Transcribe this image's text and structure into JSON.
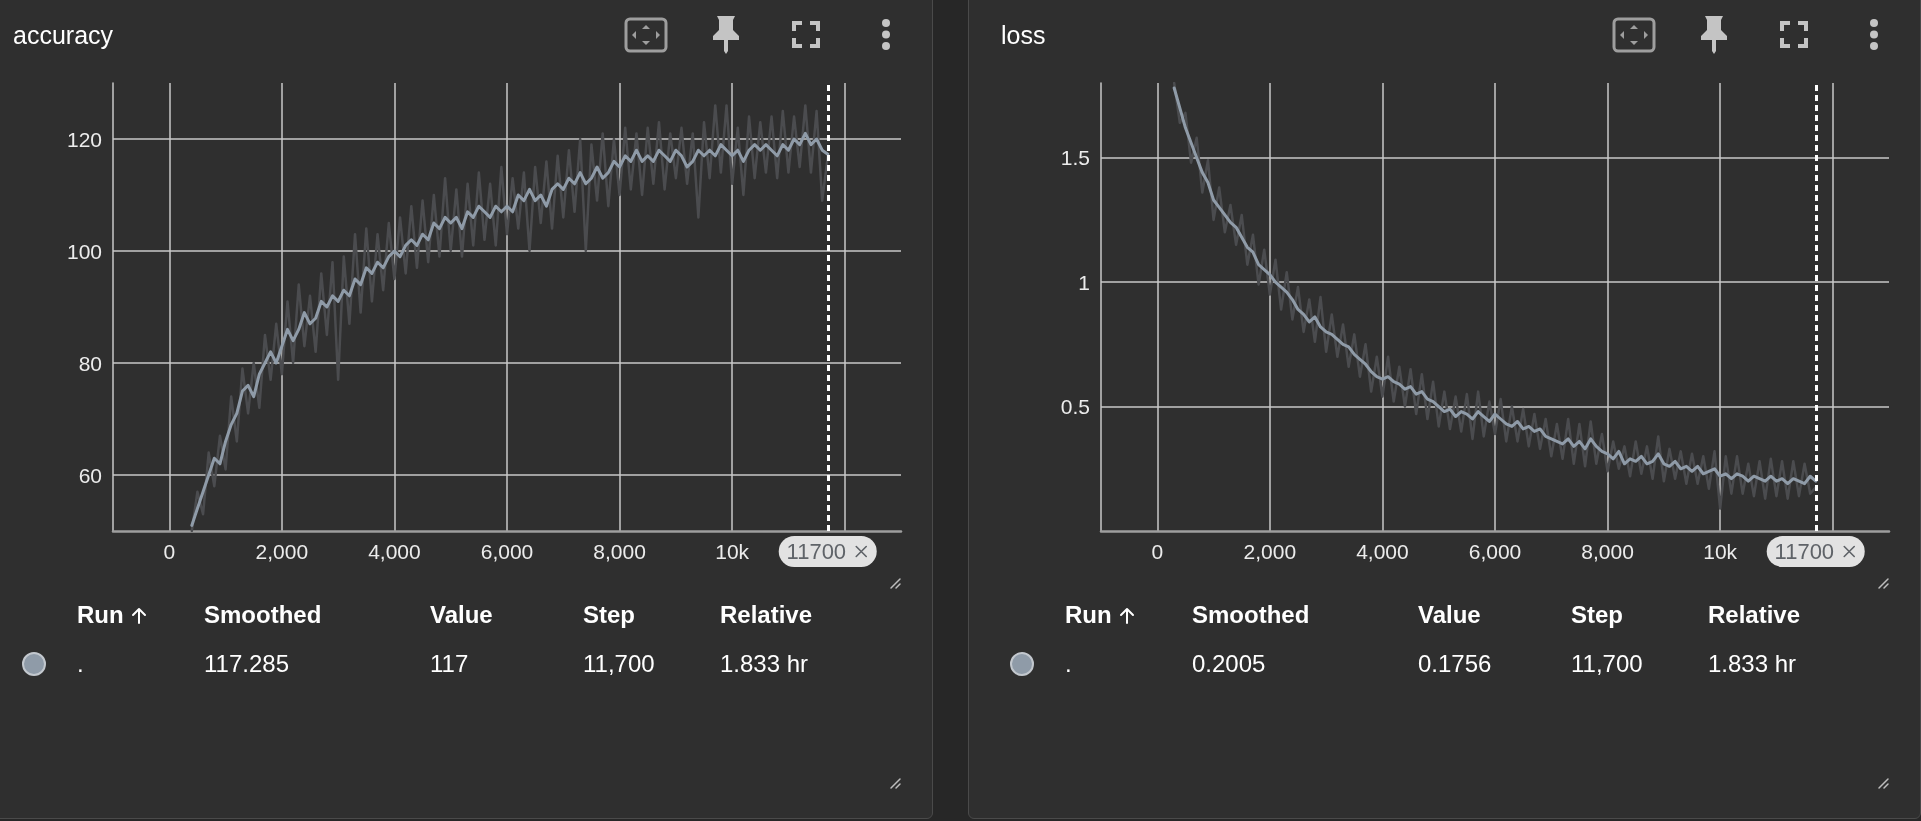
{
  "chart_data": [
    {
      "type": "line",
      "title": "accuracy",
      "x": [
        400,
        500,
        600,
        700,
        800,
        900,
        1000,
        1100,
        1200,
        1300,
        1400,
        1500,
        1600,
        1700,
        1800,
        1900,
        2000,
        2100,
        2200,
        2300,
        2400,
        2500,
        2600,
        2700,
        2800,
        2900,
        3000,
        3100,
        3200,
        3300,
        3400,
        3500,
        3600,
        3700,
        3800,
        3900,
        4000,
        4100,
        4200,
        4300,
        4400,
        4500,
        4600,
        4700,
        4800,
        4900,
        5000,
        5100,
        5200,
        5300,
        5400,
        5500,
        5600,
        5700,
        5800,
        5900,
        6000,
        6100,
        6200,
        6300,
        6400,
        6500,
        6600,
        6700,
        6800,
        6900,
        7000,
        7100,
        7200,
        7300,
        7400,
        7500,
        7600,
        7700,
        7800,
        7900,
        8000,
        8100,
        8200,
        8300,
        8400,
        8500,
        8600,
        8700,
        8800,
        8900,
        9000,
        9100,
        9200,
        9300,
        9400,
        9500,
        9600,
        9700,
        9800,
        9900,
        10000,
        10100,
        10200,
        10300,
        10400,
        10500,
        10600,
        10700,
        10800,
        10900,
        11000,
        11100,
        11200,
        11300,
        11400,
        11500,
        11600,
        11700
      ],
      "series": [
        {
          "color": "#4b4c4f",
          "values": [
            50,
            57,
            53,
            64,
            58,
            67,
            61,
            74,
            66,
            79,
            71,
            80,
            72,
            85,
            77,
            87,
            78,
            91,
            80,
            94,
            83,
            92,
            82,
            96,
            85,
            98,
            77,
            99,
            87,
            103,
            89,
            104,
            91,
            103,
            93,
            105,
            95,
            106,
            96,
            108,
            97,
            109,
            98,
            110,
            99,
            113,
            100,
            111,
            99,
            112,
            101,
            114,
            102,
            112,
            101,
            115,
            103,
            113,
            104,
            114,
            100,
            115,
            105,
            116,
            104,
            117,
            106,
            118,
            107,
            120,
            100,
            119,
            109,
            121,
            108,
            120,
            110,
            122,
            111,
            121,
            110,
            122,
            112,
            123,
            111,
            121,
            113,
            122,
            112,
            121,
            106,
            123,
            113,
            126,
            114,
            126,
            112,
            122,
            110,
            124,
            113,
            123,
            114,
            124,
            113,
            125,
            114,
            124,
            115,
            126,
            114,
            125,
            109,
            117
          ]
        },
        {
          "color": "#8f9ba8",
          "values": [
            51,
            54,
            57,
            60,
            63,
            62,
            66,
            69,
            71,
            75,
            76,
            74,
            78,
            80,
            82,
            80,
            83,
            86,
            84,
            86,
            89,
            87,
            88,
            91,
            90,
            92,
            91,
            93,
            92,
            95,
            94,
            97,
            96,
            98,
            97,
            99,
            100,
            99,
            101,
            102,
            101,
            103,
            102,
            105,
            104,
            106,
            105,
            106,
            104,
            107,
            106,
            108,
            107,
            106,
            108,
            107,
            108,
            107,
            110,
            109,
            111,
            109,
            110,
            108,
            111,
            112,
            111,
            113,
            112,
            114,
            112,
            113,
            115,
            113,
            114,
            116,
            115,
            117,
            116,
            118,
            116,
            117,
            116,
            118,
            117,
            116,
            118,
            117,
            115,
            116,
            118,
            117,
            118,
            117,
            119,
            118,
            117,
            118,
            116,
            118,
            119,
            118,
            119,
            118,
            117,
            119,
            118,
            120,
            119,
            121,
            119,
            120,
            118,
            117.285
          ]
        }
      ],
      "xlim": [
        -1000,
        13000
      ],
      "xticks": [
        0,
        {
          "value": 2000,
          "label": "2,000"
        },
        {
          "value": 4000,
          "label": "4,000"
        },
        {
          "value": 6000,
          "label": "6,000"
        },
        {
          "value": 8000,
          "label": "8,000"
        },
        {
          "value": 10000,
          "label": "10k"
        },
        {
          "value": 12000,
          "label": null
        }
      ],
      "ylim": [
        50,
        130
      ],
      "yticks": [
        60,
        80,
        100,
        120
      ],
      "grid": true,
      "ref_lines": [
        {
          "axis": "x",
          "value": 11700,
          "label": "11700",
          "color": "#ffffff",
          "line_style": "dotted"
        }
      ],
      "annotations": [
        "Run",
        "Smoothed",
        "Value",
        "Step",
        "Relative",
        ".",
        "117.285",
        "117",
        "11,700",
        "1.833 hr"
      ]
    },
    {
      "type": "line",
      "title": "loss",
      "x": [
        300,
        400,
        500,
        600,
        700,
        800,
        900,
        1000,
        1100,
        1200,
        1300,
        1400,
        1500,
        1600,
        1700,
        1800,
        1900,
        2000,
        2100,
        2200,
        2300,
        2400,
        2500,
        2600,
        2700,
        2800,
        2900,
        3000,
        3100,
        3200,
        3300,
        3400,
        3500,
        3600,
        3700,
        3800,
        3900,
        4000,
        4100,
        4200,
        4300,
        4400,
        4500,
        4600,
        4700,
        4800,
        4900,
        5000,
        5100,
        5200,
        5300,
        5400,
        5500,
        5600,
        5700,
        5800,
        5900,
        6000,
        6100,
        6200,
        6300,
        6400,
        6500,
        6600,
        6700,
        6800,
        6900,
        7000,
        7100,
        7200,
        7300,
        7400,
        7500,
        7600,
        7700,
        7800,
        7900,
        8000,
        8100,
        8200,
        8300,
        8400,
        8500,
        8600,
        8700,
        8800,
        8900,
        9000,
        9100,
        9200,
        9300,
        9400,
        9500,
        9600,
        9700,
        9800,
        9900,
        10000,
        10100,
        10200,
        10300,
        10400,
        10500,
        10600,
        10700,
        10800,
        10900,
        11000,
        11100,
        11200,
        11300,
        11400,
        11500,
        11600,
        11700
      ],
      "series": [
        {
          "color": "#4b4c4f",
          "values": [
            1.8,
            1.64,
            1.68,
            1.48,
            1.58,
            1.36,
            1.49,
            1.25,
            1.38,
            1.2,
            1.31,
            1.15,
            1.27,
            1.07,
            1.19,
            0.99,
            1.13,
            0.95,
            1.09,
            0.89,
            1.04,
            0.85,
            0.98,
            0.8,
            0.93,
            0.76,
            0.94,
            0.72,
            0.87,
            0.7,
            0.83,
            0.66,
            0.79,
            0.62,
            0.75,
            0.56,
            0.7,
            0.54,
            0.7,
            0.52,
            0.66,
            0.5,
            0.65,
            0.47,
            0.63,
            0.45,
            0.6,
            0.42,
            0.56,
            0.41,
            0.54,
            0.4,
            0.55,
            0.37,
            0.56,
            0.38,
            0.52,
            0.39,
            0.53,
            0.36,
            0.5,
            0.36,
            0.49,
            0.34,
            0.47,
            0.33,
            0.45,
            0.3,
            0.43,
            0.29,
            0.45,
            0.27,
            0.43,
            0.26,
            0.44,
            0.27,
            0.39,
            0.24,
            0.36,
            0.25,
            0.34,
            0.22,
            0.36,
            0.23,
            0.34,
            0.21,
            0.38,
            0.2,
            0.33,
            0.21,
            0.32,
            0.19,
            0.31,
            0.19,
            0.3,
            0.17,
            0.32,
            0.09,
            0.3,
            0.15,
            0.3,
            0.15,
            0.27,
            0.14,
            0.28,
            0.13,
            0.29,
            0.14,
            0.28,
            0.13,
            0.28,
            0.14,
            0.27,
            0.15,
            0.1756
          ]
        },
        {
          "color": "#8f9ba8",
          "values": [
            1.78,
            1.7,
            1.62,
            1.56,
            1.5,
            1.44,
            1.4,
            1.33,
            1.3,
            1.27,
            1.24,
            1.22,
            1.18,
            1.14,
            1.12,
            1.07,
            1.05,
            1.03,
            1.0,
            0.98,
            0.96,
            0.93,
            0.89,
            0.87,
            0.84,
            0.86,
            0.82,
            0.8,
            0.79,
            0.77,
            0.75,
            0.74,
            0.71,
            0.69,
            0.67,
            0.64,
            0.62,
            0.61,
            0.62,
            0.6,
            0.59,
            0.57,
            0.58,
            0.55,
            0.56,
            0.53,
            0.52,
            0.5,
            0.48,
            0.49,
            0.46,
            0.48,
            0.47,
            0.45,
            0.48,
            0.46,
            0.44,
            0.47,
            0.45,
            0.43,
            0.42,
            0.44,
            0.41,
            0.42,
            0.4,
            0.41,
            0.38,
            0.37,
            0.36,
            0.35,
            0.37,
            0.34,
            0.36,
            0.33,
            0.37,
            0.34,
            0.32,
            0.31,
            0.29,
            0.32,
            0.27,
            0.29,
            0.28,
            0.3,
            0.27,
            0.28,
            0.31,
            0.27,
            0.26,
            0.28,
            0.25,
            0.26,
            0.24,
            0.26,
            0.23,
            0.24,
            0.25,
            0.22,
            0.23,
            0.21,
            0.23,
            0.22,
            0.2,
            0.22,
            0.21,
            0.2,
            0.22,
            0.2,
            0.21,
            0.19,
            0.21,
            0.2,
            0.19,
            0.22,
            0.2005
          ]
        }
      ],
      "xlim": [
        -1000,
        13000
      ],
      "xticks": [
        0,
        {
          "value": 2000,
          "label": "2,000"
        },
        {
          "value": 4000,
          "label": "4,000"
        },
        {
          "value": 6000,
          "label": "6,000"
        },
        {
          "value": 8000,
          "label": "8,000"
        },
        {
          "value": 10000,
          "label": "10k"
        },
        {
          "value": 12000,
          "label": null
        }
      ],
      "ylim": [
        0,
        1.8
      ],
      "yticks": [
        0.5,
        1,
        1.5
      ],
      "grid": true,
      "ref_lines": [
        {
          "axis": "x",
          "value": 11700,
          "label": "11700",
          "color": "#ffffff",
          "line_style": "dotted"
        }
      ],
      "annotations": [
        "Run",
        "Smoothed",
        "Value",
        "Step",
        "Relative",
        ".",
        "0.2005",
        "0.1756",
        "11,700",
        "1.833 hr"
      ]
    }
  ]
}
